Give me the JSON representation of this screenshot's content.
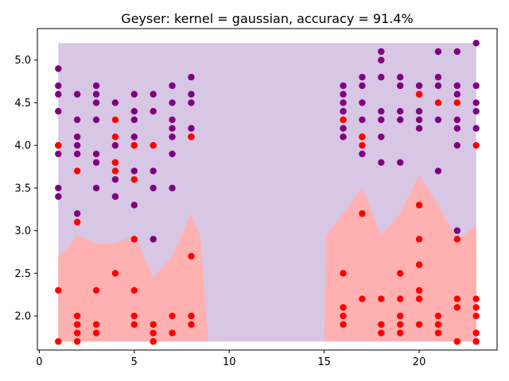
{
  "chart_data": {
    "type": "scatter",
    "title": "Geyser: kernel = gaussian, accuracy = 91.4%",
    "xlabel": "",
    "ylabel": "",
    "xlim": [
      -0.1,
      24.1
    ],
    "ylim": [
      1.6,
      5.37
    ],
    "grid": false,
    "xticks": [
      0,
      5,
      10,
      15,
      20
    ],
    "xtick_labels": [
      "0",
      "5",
      "10",
      "15",
      "20"
    ],
    "yticks": [
      2.0,
      2.5,
      3.0,
      3.5,
      4.0,
      4.5,
      5.0
    ],
    "ytick_labels": [
      "2.0",
      "2.5",
      "3.0",
      "3.5",
      "4.0",
      "4.5",
      "5.0"
    ],
    "colors": {
      "class_a": "#800080",
      "class_b": "#ff0000",
      "region_a": "#d7c6e4",
      "region_b": "#ffb1b1"
    },
    "decision_region": {
      "x_range": [
        1,
        23
      ],
      "y_range": [
        1.7,
        5.2
      ],
      "boundary_x": [
        1,
        1.5,
        2,
        3,
        4,
        5,
        6,
        7,
        8,
        8.5,
        8.9,
        9,
        15,
        15.1,
        16,
        17,
        18,
        19,
        20,
        21,
        22,
        23
      ],
      "boundary_y": [
        2.7,
        2.8,
        2.95,
        2.85,
        2.85,
        2.95,
        2.45,
        2.7,
        3.2,
        2.9,
        1.7,
        1.7,
        1.7,
        2.95,
        3.2,
        3.5,
        2.95,
        3.2,
        3.65,
        3.3,
        2.9,
        3.05
      ]
    },
    "series": [
      {
        "class": "a",
        "points": [
          [
            1,
            4.9
          ],
          [
            1,
            4.7
          ],
          [
            1,
            4.6
          ],
          [
            1,
            4.4
          ],
          [
            1,
            4.0
          ],
          [
            1,
            3.9
          ],
          [
            1,
            3.5
          ],
          [
            1,
            3.4
          ],
          [
            2,
            4.6
          ],
          [
            2,
            4.3
          ],
          [
            2,
            4.1
          ],
          [
            2,
            4.0
          ],
          [
            2,
            3.9
          ],
          [
            2,
            3.2
          ],
          [
            3,
            4.7
          ],
          [
            3,
            4.6
          ],
          [
            3,
            4.5
          ],
          [
            3,
            4.3
          ],
          [
            3,
            3.9
          ],
          [
            3,
            3.8
          ],
          [
            3,
            3.5
          ],
          [
            4,
            4.5
          ],
          [
            4,
            4.0
          ],
          [
            4,
            3.8
          ],
          [
            4,
            3.6
          ],
          [
            4,
            3.4
          ],
          [
            5,
            4.6
          ],
          [
            5,
            4.4
          ],
          [
            5,
            4.3
          ],
          [
            5,
            4.1
          ],
          [
            5,
            4.0
          ],
          [
            5,
            3.7
          ],
          [
            5,
            3.3
          ],
          [
            6,
            4.6
          ],
          [
            6,
            4.4
          ],
          [
            6,
            4.0
          ],
          [
            6,
            3.7
          ],
          [
            6,
            3.5
          ],
          [
            6,
            2.9
          ],
          [
            7,
            4.7
          ],
          [
            7,
            4.5
          ],
          [
            7,
            4.3
          ],
          [
            7,
            4.2
          ],
          [
            7,
            4.1
          ],
          [
            7,
            3.9
          ],
          [
            7,
            3.5
          ],
          [
            8,
            4.8
          ],
          [
            8,
            4.6
          ],
          [
            8,
            4.5
          ],
          [
            8,
            4.2
          ],
          [
            8,
            4.1
          ],
          [
            16,
            4.7
          ],
          [
            16,
            4.6
          ],
          [
            16,
            4.5
          ],
          [
            16,
            4.4
          ],
          [
            16,
            4.2
          ],
          [
            16,
            4.1
          ],
          [
            17,
            4.8
          ],
          [
            17,
            4.7
          ],
          [
            17,
            4.5
          ],
          [
            17,
            4.3
          ],
          [
            17,
            4.1
          ],
          [
            17,
            3.9
          ],
          [
            18,
            5.1
          ],
          [
            18,
            5.0
          ],
          [
            18,
            4.8
          ],
          [
            18,
            4.4
          ],
          [
            18,
            4.3
          ],
          [
            18,
            4.1
          ],
          [
            18,
            3.8
          ],
          [
            19,
            4.8
          ],
          [
            19,
            4.7
          ],
          [
            19,
            4.4
          ],
          [
            19,
            4.3
          ],
          [
            19,
            3.8
          ],
          [
            20,
            4.7
          ],
          [
            20,
            4.6
          ],
          [
            20,
            4.4
          ],
          [
            20,
            4.3
          ],
          [
            20,
            4.2
          ],
          [
            21,
            5.1
          ],
          [
            21,
            4.8
          ],
          [
            21,
            4.7
          ],
          [
            21,
            4.3
          ],
          [
            21,
            3.7
          ],
          [
            22,
            5.1
          ],
          [
            22,
            4.7
          ],
          [
            22,
            4.6
          ],
          [
            22,
            4.3
          ],
          [
            22,
            4.2
          ],
          [
            22,
            4.0
          ],
          [
            22,
            3.0
          ],
          [
            23,
            5.2
          ],
          [
            23,
            4.7
          ],
          [
            23,
            4.5
          ],
          [
            23,
            4.4
          ],
          [
            23,
            4.2
          ]
        ]
      },
      {
        "class": "b",
        "points": [
          [
            1,
            4.0
          ],
          [
            1,
            2.3
          ],
          [
            1,
            1.7
          ],
          [
            2,
            3.7
          ],
          [
            2,
            3.1
          ],
          [
            2,
            2.0
          ],
          [
            2,
            1.9
          ],
          [
            2,
            1.8
          ],
          [
            2,
            1.7
          ],
          [
            3,
            2.3
          ],
          [
            3,
            1.9
          ],
          [
            3,
            1.8
          ],
          [
            4,
            4.3
          ],
          [
            4,
            4.1
          ],
          [
            4,
            3.8
          ],
          [
            4,
            3.7
          ],
          [
            4,
            2.5
          ],
          [
            5,
            4.0
          ],
          [
            5,
            3.6
          ],
          [
            5,
            2.9
          ],
          [
            5,
            2.3
          ],
          [
            5,
            2.0
          ],
          [
            5,
            1.9
          ],
          [
            6,
            4.0
          ],
          [
            6,
            1.9
          ],
          [
            6,
            1.8
          ],
          [
            6,
            1.7
          ],
          [
            7,
            2.0
          ],
          [
            7,
            1.8
          ],
          [
            8,
            4.1
          ],
          [
            8,
            2.7
          ],
          [
            8,
            2.0
          ],
          [
            8,
            1.9
          ],
          [
            16,
            4.3
          ],
          [
            16,
            2.5
          ],
          [
            16,
            2.1
          ],
          [
            16,
            2.0
          ],
          [
            16,
            1.9
          ],
          [
            17,
            4.1
          ],
          [
            17,
            4.0
          ],
          [
            17,
            3.2
          ],
          [
            17,
            2.2
          ],
          [
            18,
            2.2
          ],
          [
            18,
            1.9
          ],
          [
            18,
            1.8
          ],
          [
            19,
            2.5
          ],
          [
            19,
            2.2
          ],
          [
            19,
            2.0
          ],
          [
            19,
            1.9
          ],
          [
            19,
            1.8
          ],
          [
            20,
            4.6
          ],
          [
            20,
            3.3
          ],
          [
            20,
            2.9
          ],
          [
            20,
            2.6
          ],
          [
            20,
            2.3
          ],
          [
            20,
            2.2
          ],
          [
            20,
            1.9
          ],
          [
            21,
            4.5
          ],
          [
            21,
            2.0
          ],
          [
            21,
            1.9
          ],
          [
            21,
            1.8
          ],
          [
            22,
            4.5
          ],
          [
            22,
            2.9
          ],
          [
            22,
            2.2
          ],
          [
            22,
            2.1
          ],
          [
            22,
            1.7
          ],
          [
            23,
            4.0
          ],
          [
            23,
            2.2
          ],
          [
            23,
            2.1
          ],
          [
            23,
            2.0
          ],
          [
            23,
            1.8
          ],
          [
            23,
            1.7
          ]
        ]
      }
    ]
  }
}
